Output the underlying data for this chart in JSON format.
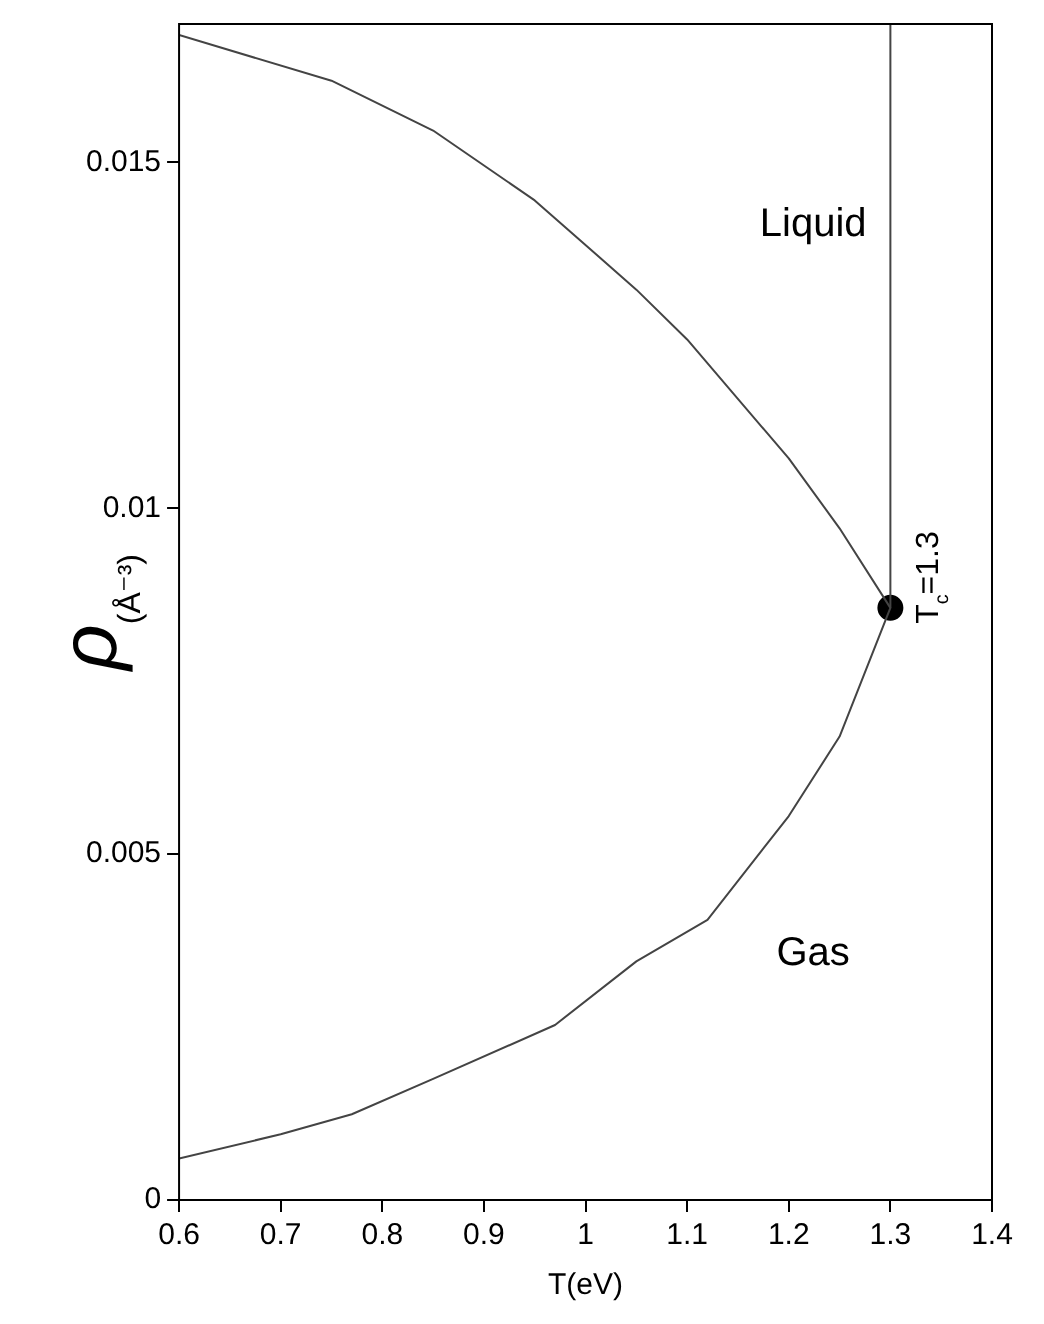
{
  "chart_data": {
    "type": "line",
    "xlabel": "T(eV)",
    "ylabel": "ρ$_{(Å⁻³)}$",
    "xlim": [
      0.6,
      1.4
    ],
    "xticks": [
      0.6,
      0.7,
      0.8,
      0.9,
      1,
      1.1,
      1.2,
      1.3,
      1.4
    ],
    "ylim": [
      0,
      0.017
    ],
    "yticks": [
      0,
      0.005,
      0.01,
      0.015
    ],
    "grid": false,
    "legend": false,
    "series": [
      {
        "color": "#444444",
        "marker": "none",
        "x": [
          0.6,
          0.7,
          0.77,
          0.85,
          0.97,
          1.05,
          1.12,
          1.2,
          1.25,
          1.3,
          1.25,
          1.2,
          1.1,
          1.05,
          0.95,
          0.85,
          0.75,
          0.6
        ],
        "values": [
          0.0006,
          0.00095,
          0.00124,
          0.00175,
          0.00253,
          0.00345,
          0.00405,
          0.00555,
          0.0067,
          0.00856,
          0.00971,
          0.01072,
          0.01244,
          0.01316,
          0.01445,
          0.01546,
          0.01618,
          0.01684
        ]
      },
      {
        "color": "#444444",
        "marker": "none",
        "x": [
          1.3,
          1.3
        ],
        "values": [
          0.00856,
          0.017
        ]
      },
      {
        "type": "scatter",
        "color": "#000000",
        "marker": "circle",
        "x": [
          1.3
        ],
        "values": [
          0.00856
        ]
      }
    ],
    "annotations": [
      "Liquid",
      "Gas",
      {
        "text": "T$_{c}$=1.3",
        "x": 1.3,
        "y": 0.00856
      }
    ]
  }
}
